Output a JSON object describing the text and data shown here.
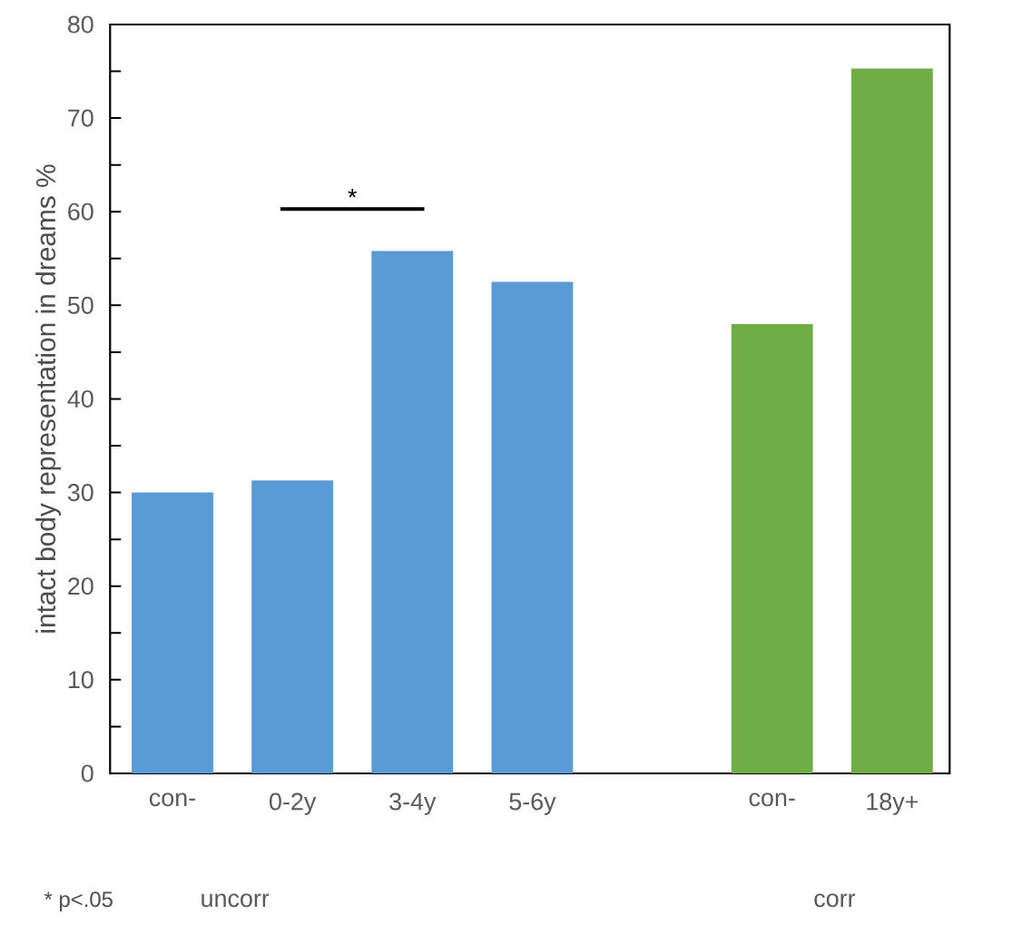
{
  "chart_data": {
    "type": "bar",
    "ylabel": "intact body representation in dreams %",
    "categories": [
      "con-",
      "0-2y",
      "3-4y",
      "5-6y",
      null,
      "con-",
      "18y+"
    ],
    "values": [
      30.0,
      31.3,
      55.8,
      52.5,
      null,
      48.0,
      75.3
    ],
    "colors": [
      "#5b9bd5",
      "#5b9bd5",
      "#5b9bd5",
      "#5b9bd5",
      "#5b9bd5",
      "#70ad47",
      "#70ad47"
    ],
    "ylim": [
      0,
      80
    ],
    "yticks": [
      0,
      {
        "value": 5,
        "label": null
      },
      10,
      {
        "value": 15,
        "label": null
      },
      20,
      {
        "value": 25,
        "label": null
      },
      30,
      {
        "value": 35,
        "label": null
      },
      40,
      {
        "value": 45,
        "label": null
      },
      50,
      {
        "value": 55,
        "label": null
      },
      60,
      {
        "value": 65,
        "label": null
      },
      70,
      {
        "value": 75,
        "label": null
      },
      80
    ],
    "annotations": [
      "*",
      "* p<.05",
      "uncorr",
      "corr"
    ]
  }
}
